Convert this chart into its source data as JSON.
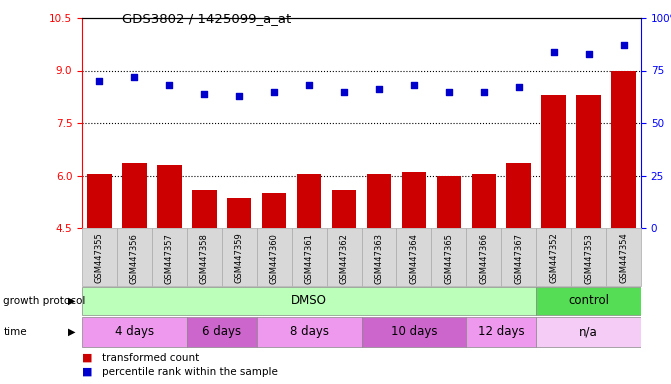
{
  "title": "GDS3802 / 1425099_a_at",
  "samples": [
    "GSM447355",
    "GSM447356",
    "GSM447357",
    "GSM447358",
    "GSM447359",
    "GSM447360",
    "GSM447361",
    "GSM447362",
    "GSM447363",
    "GSM447364",
    "GSM447365",
    "GSM447366",
    "GSM447367",
    "GSM447352",
    "GSM447353",
    "GSM447354"
  ],
  "bar_values": [
    6.05,
    6.35,
    6.3,
    5.6,
    5.35,
    5.5,
    6.05,
    5.6,
    6.05,
    6.1,
    6.0,
    6.05,
    6.35,
    8.3,
    8.3,
    9.0
  ],
  "dot_values": [
    70,
    72,
    68,
    64,
    63,
    65,
    68,
    65,
    66,
    68,
    65,
    65,
    67,
    84,
    83,
    87
  ],
  "bar_color": "#cc0000",
  "dot_color": "#0000cc",
  "ylim_left": [
    4.5,
    10.5
  ],
  "ylim_right": [
    0,
    100
  ],
  "yticks_left": [
    4.5,
    6.0,
    7.5,
    9.0,
    10.5
  ],
  "yticks_right": [
    0,
    25,
    50,
    75,
    100
  ],
  "ytick_labels_right": [
    "0",
    "25",
    "50",
    "75",
    "100%"
  ],
  "hlines": [
    6.0,
    7.5,
    9.0
  ],
  "growth_protocol_segments": [
    {
      "label": "DMSO",
      "start": 0,
      "end": 13,
      "color": "#bbffbb"
    },
    {
      "label": "control",
      "start": 13,
      "end": 16,
      "color": "#55dd55"
    }
  ],
  "time_segments": [
    {
      "label": "4 days",
      "start": 0,
      "end": 3,
      "color": "#ee99ee"
    },
    {
      "label": "6 days",
      "start": 3,
      "end": 5,
      "color": "#cc66cc"
    },
    {
      "label": "8 days",
      "start": 5,
      "end": 8,
      "color": "#ee99ee"
    },
    {
      "label": "10 days",
      "start": 8,
      "end": 11,
      "color": "#cc66cc"
    },
    {
      "label": "12 days",
      "start": 11,
      "end": 13,
      "color": "#ee99ee"
    },
    {
      "label": "n/a",
      "start": 13,
      "end": 16,
      "color": "#f5ccf5"
    }
  ],
  "legend_bar_label": "transformed count",
  "legend_dot_label": "percentile rank within the sample",
  "growth_protocol_text": "growth protocol",
  "time_text": "time",
  "bg_color": "#ffffff",
  "bar_width": 0.7,
  "xticklabel_bg": "#d8d8d8"
}
